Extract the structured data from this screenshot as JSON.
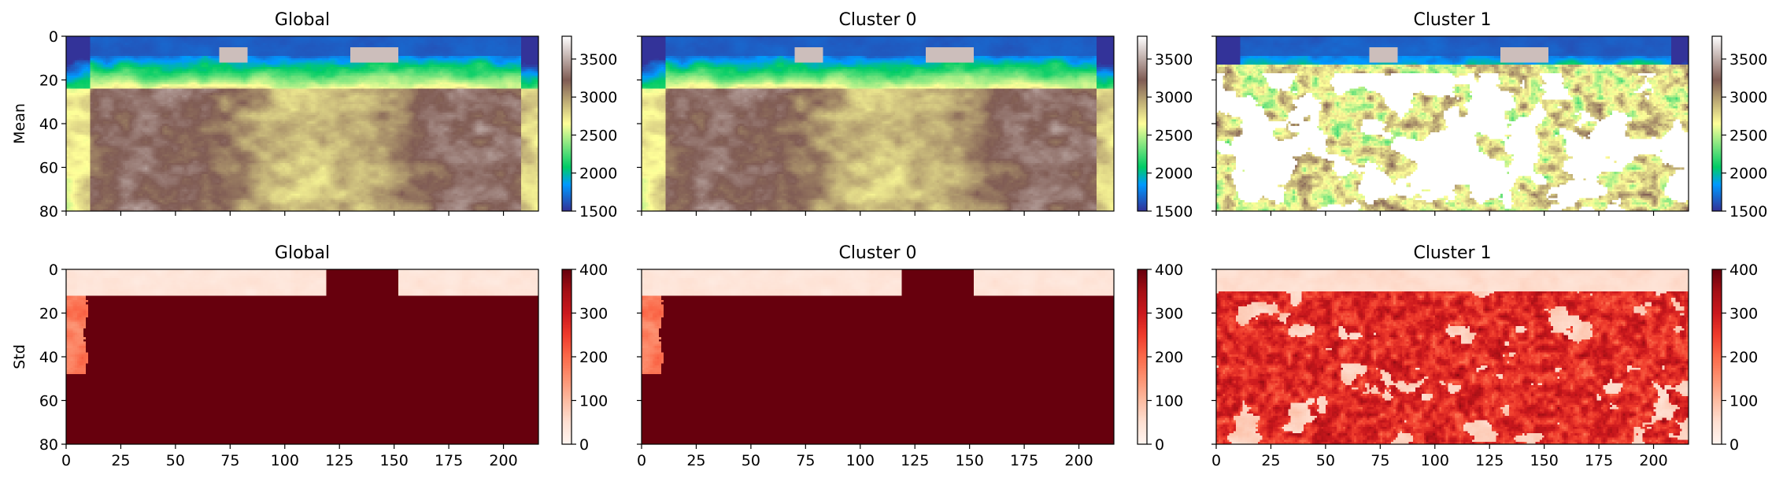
{
  "figure": {
    "row_labels": [
      "Mean",
      "Std"
    ]
  },
  "chart_data": [
    {
      "type": "heatmap",
      "title": "Global",
      "ylabel": "Mean",
      "xlim": [
        0,
        216
      ],
      "ylim": [
        80,
        0
      ],
      "xticks": [
        "0",
        "25",
        "50",
        "75",
        "100",
        "125",
        "150",
        "175",
        "200"
      ],
      "yticks": [
        "0",
        "20",
        "40",
        "60",
        "80"
      ],
      "colormap": "terrain",
      "colorbar": {
        "range": [
          1500,
          3800
        ],
        "ticks": [
          "1500",
          "2000",
          "2500",
          "3000",
          "3500"
        ]
      },
      "values_description": "",
      "pattern": "mean",
      "cluster": "global"
    },
    {
      "type": "heatmap",
      "title": "Cluster 0",
      "xlim": [
        0,
        216
      ],
      "ylim": [
        80,
        0
      ],
      "xticks": [
        "0",
        "25",
        "50",
        "75",
        "100",
        "125",
        "150",
        "175",
        "200"
      ],
      "yticks": [
        "0",
        "20",
        "40",
        "60",
        "80"
      ],
      "colormap": "terrain",
      "colorbar": {
        "range": [
          1500,
          3800
        ],
        "ticks": [
          "1500",
          "2000",
          "2500",
          "3000",
          "3500"
        ]
      },
      "pattern": "mean",
      "cluster": "c0"
    },
    {
      "type": "heatmap",
      "title": "Cluster 1",
      "xlim": [
        0,
        216
      ],
      "ylim": [
        80,
        0
      ],
      "xticks": [
        "0",
        "25",
        "50",
        "75",
        "100",
        "125",
        "150",
        "175",
        "200"
      ],
      "yticks": [
        "0",
        "20",
        "40",
        "60",
        "80"
      ],
      "colormap": "terrain",
      "colorbar": {
        "range": [
          1500,
          3800
        ],
        "ticks": [
          "1500",
          "2000",
          "2500",
          "3000",
          "3500"
        ]
      },
      "pattern": "mean",
      "cluster": "c1"
    },
    {
      "type": "heatmap",
      "title": "Global",
      "ylabel": "Std",
      "xlim": [
        0,
        216
      ],
      "ylim": [
        80,
        0
      ],
      "xticks": [
        "0",
        "25",
        "50",
        "75",
        "100",
        "125",
        "150",
        "175",
        "200"
      ],
      "yticks": [
        "0",
        "20",
        "40",
        "60",
        "80"
      ],
      "colormap": "reds",
      "colorbar": {
        "range": [
          0,
          400
        ],
        "ticks": [
          "0",
          "100",
          "200",
          "300",
          "400"
        ]
      },
      "pattern": "std",
      "cluster": "global"
    },
    {
      "type": "heatmap",
      "title": "Cluster 0",
      "xlim": [
        0,
        216
      ],
      "ylim": [
        80,
        0
      ],
      "xticks": [
        "0",
        "25",
        "50",
        "75",
        "100",
        "125",
        "150",
        "175",
        "200"
      ],
      "yticks": [
        "0",
        "20",
        "40",
        "60",
        "80"
      ],
      "colormap": "reds",
      "colorbar": {
        "range": [
          0,
          400
        ],
        "ticks": [
          "0",
          "100",
          "200",
          "300",
          "400"
        ]
      },
      "pattern": "std",
      "cluster": "c0"
    },
    {
      "type": "heatmap",
      "title": "Cluster 1",
      "xlim": [
        0,
        216
      ],
      "ylim": [
        80,
        0
      ],
      "xticks": [
        "0",
        "25",
        "50",
        "75",
        "100",
        "125",
        "150",
        "175",
        "200"
      ],
      "yticks": [
        "0",
        "20",
        "40",
        "60",
        "80"
      ],
      "colormap": "reds",
      "colorbar": {
        "range": [
          0,
          400
        ],
        "ticks": [
          "0",
          "100",
          "200",
          "300",
          "400"
        ]
      },
      "pattern": "std",
      "cluster": "c1"
    }
  ]
}
